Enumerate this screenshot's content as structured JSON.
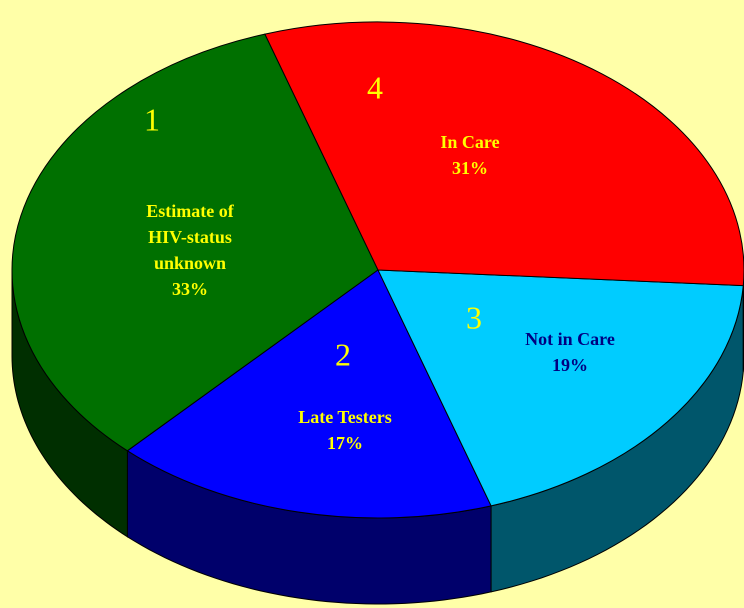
{
  "chart_data": {
    "type": "pie3d",
    "categories": [
      "Estimate of HIV-status unknown",
      "Late Testers",
      "Not in Care",
      "In Care"
    ],
    "slice_numbers": [
      1,
      2,
      3,
      4
    ],
    "values": [
      33,
      17,
      19,
      31
    ],
    "value_labels": [
      "33%",
      "17%",
      "19%",
      "31%"
    ],
    "colors": [
      "#007000",
      "#0000ff",
      "#00ccff",
      "#ff0000"
    ],
    "label_colors": [
      "#ffff00",
      "#ffff00",
      "#000080",
      "#ffff00"
    ],
    "number_color": "#ffff00",
    "background": "#ffffa8"
  }
}
